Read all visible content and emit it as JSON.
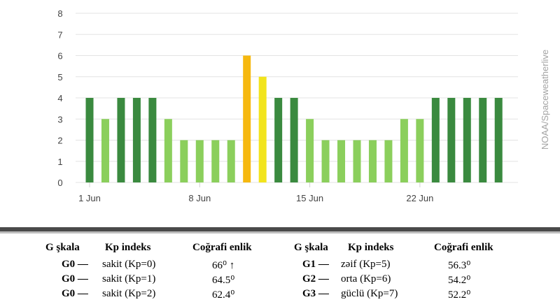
{
  "colors": {
    "g0_dark": "#3a8a3f",
    "g0_light": "#8bcf5c",
    "g1": "#f2e41c",
    "g2": "#f6b80f",
    "grid": "#e3e3e3",
    "axis_text": "#444444"
  },
  "chart_data": {
    "type": "bar",
    "x_tick_labels": [
      "1 Jun",
      "8 Jun",
      "15 Jun",
      "22 Jun"
    ],
    "x_tick_positions": [
      1,
      8,
      15,
      22
    ],
    "y_ticks": [
      "0",
      "1",
      "2",
      "3",
      "4",
      "5",
      "6",
      "7",
      "8"
    ],
    "ylim": [
      0,
      8
    ],
    "grid": true,
    "days": [
      1,
      2,
      3,
      4,
      5,
      6,
      7,
      8,
      9,
      10,
      11,
      12,
      13,
      14,
      15,
      16,
      17,
      18,
      19,
      20,
      21,
      22,
      23,
      24,
      25,
      26,
      27
    ],
    "values": [
      4,
      3,
      4,
      4,
      4,
      3,
      2,
      2,
      2,
      2,
      6,
      5,
      4,
      4,
      3,
      2,
      2,
      2,
      2,
      2,
      3,
      3,
      4,
      4,
      4,
      4,
      4
    ],
    "bar_colors": [
      "g0_dark",
      "g0_light",
      "g0_dark",
      "g0_dark",
      "g0_dark",
      "g0_light",
      "g0_light",
      "g0_light",
      "g0_light",
      "g0_light",
      "g2",
      "g1",
      "g0_dark",
      "g0_dark",
      "g0_light",
      "g0_light",
      "g0_light",
      "g0_light",
      "g0_light",
      "g0_light",
      "g0_light",
      "g0_light",
      "g0_dark",
      "g0_dark",
      "g0_dark",
      "g0_dark",
      "g0_dark"
    ]
  },
  "credit": "NOAA/Spaceweatherlive",
  "legend_table": {
    "headers": [
      "G şkala",
      "Kp indeks",
      "Coğrafi enlik",
      "G şkala",
      "Kp indeks",
      "Coğrafi enlik"
    ],
    "rows": [
      [
        "G0 —",
        "sakit (Kp=0)",
        "66⁰ ↑",
        "G1 —",
        "zəif (Kp=5)",
        "56.3⁰"
      ],
      [
        "G0 —",
        "sakit (Kp=1)",
        "64.5⁰",
        "G2 —",
        "orta (Kp=6)",
        "54.2⁰"
      ],
      [
        "G0 —",
        "sakit (Kp=2)",
        "62.4⁰",
        "G3 —",
        "güclü (Kp=7)",
        "52.2⁰"
      ]
    ]
  }
}
